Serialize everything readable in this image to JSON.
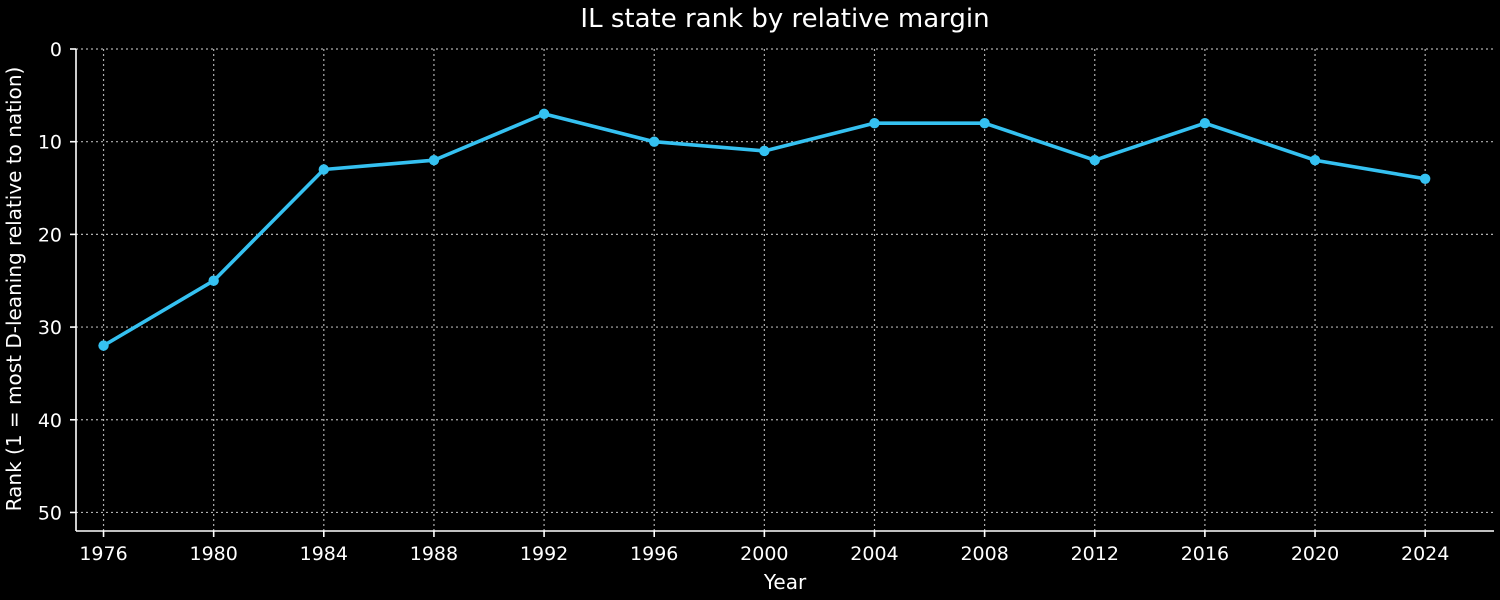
{
  "chart_data": {
    "type": "line",
    "title": "IL state rank by relative margin",
    "xlabel": "Year",
    "ylabel": "Rank (1 = most D-leaning relative to nation)",
    "x": [
      1976,
      1980,
      1984,
      1988,
      1992,
      1996,
      2000,
      2004,
      2008,
      2012,
      2016,
      2020,
      2024
    ],
    "series": [
      {
        "values": [
          32,
          25,
          13,
          12,
          7,
          10,
          11,
          8,
          8,
          12,
          8,
          12,
          14
        ],
        "color": "#35c1f1"
      }
    ],
    "xticks": [
      "1976",
      "1980",
      "1984",
      "1988",
      "1992",
      "1996",
      "2000",
      "2004",
      "2008",
      "2012",
      "2016",
      "2020",
      "2024"
    ],
    "yticks": [
      "0",
      "10",
      "20",
      "30",
      "40",
      "50"
    ],
    "ylim": [
      52,
      0
    ],
    "xlim": [
      1975,
      2026.5
    ],
    "y_inverted": true,
    "grid": true,
    "background": "#000000",
    "foreground": "#ffffff"
  }
}
